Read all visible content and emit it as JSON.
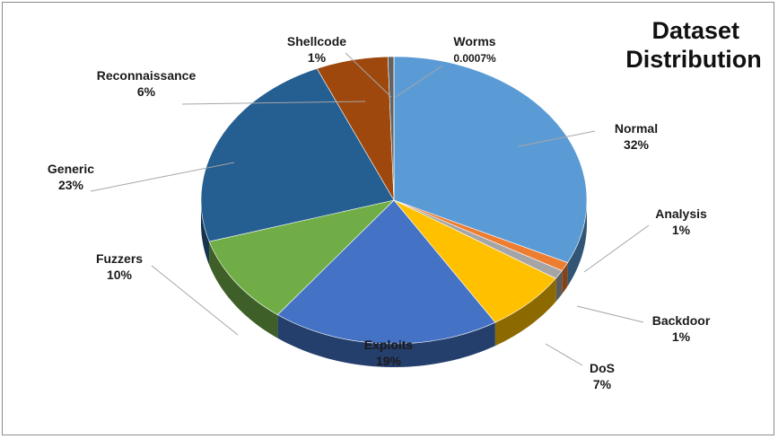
{
  "chart_data": {
    "type": "pie",
    "style": "3d",
    "title": [
      "Dataset",
      "Distribution"
    ],
    "legend": "none",
    "slices": [
      {
        "name": "Normal",
        "label": "32%",
        "value": 32,
        "color": "#5b9bd5"
      },
      {
        "name": "Analysis",
        "label": "1%",
        "value": 1,
        "color": "#ed7d31"
      },
      {
        "name": "Backdoor",
        "label": "1%",
        "value": 1,
        "color": "#a5a5a5"
      },
      {
        "name": "DoS",
        "label": "7%",
        "value": 7,
        "color": "#ffc000"
      },
      {
        "name": "Exploits",
        "label": "19%",
        "value": 19,
        "color": "#4472c4"
      },
      {
        "name": "Fuzzers",
        "label": "10%",
        "value": 10,
        "color": "#70ad47"
      },
      {
        "name": "Generic",
        "label": "23%",
        "value": 23,
        "color": "#255e91"
      },
      {
        "name": "Reconnaissance",
        "label": "6%",
        "value": 6,
        "color": "#9e480e"
      },
      {
        "name": "Shellcode",
        "label": "1%",
        "value": 0.5,
        "color": "#636363"
      },
      {
        "name": "Worms",
        "label": "0.0007%",
        "value": 0.0007,
        "color": "#997300"
      }
    ]
  }
}
